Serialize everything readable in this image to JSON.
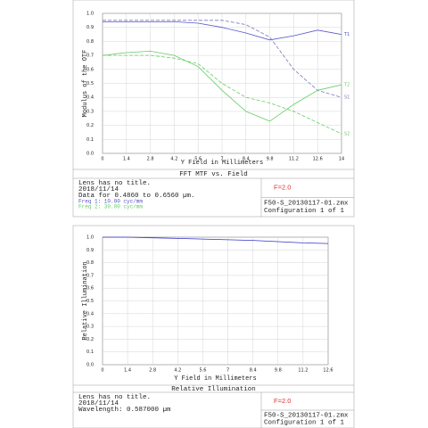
{
  "chart_data": [
    {
      "type": "line",
      "title": "FFT MTF vs. Field",
      "xlabel": "Y Field in Millimeters",
      "ylabel": "Modulus of the OTF",
      "x": [
        0,
        1.4,
        2.8,
        4.2,
        5.6,
        7,
        8.4,
        9.8,
        11.2,
        12.6,
        14
      ],
      "series": [
        {
          "name": "T1",
          "color": "#5555cc",
          "dash": false,
          "values": [
            0.94,
            0.94,
            0.94,
            0.94,
            0.93,
            0.9,
            0.86,
            0.81,
            0.84,
            0.88,
            0.85
          ]
        },
        {
          "name": "S1",
          "color": "#7777bb",
          "dash": true,
          "values": [
            0.95,
            0.95,
            0.95,
            0.95,
            0.95,
            0.95,
            0.92,
            0.83,
            0.6,
            0.45,
            0.4
          ]
        },
        {
          "name": "T2",
          "color": "#66cc66",
          "dash": false,
          "values": [
            0.7,
            0.72,
            0.73,
            0.7,
            0.62,
            0.45,
            0.3,
            0.23,
            0.35,
            0.45,
            0.49
          ]
        },
        {
          "name": "S2",
          "color": "#66cc66",
          "dash": true,
          "values": [
            0.7,
            0.7,
            0.7,
            0.68,
            0.64,
            0.5,
            0.4,
            0.36,
            0.3,
            0.22,
            0.14
          ]
        }
      ],
      "xlim": [
        0,
        14
      ],
      "xticks": [
        0,
        1.4,
        2.8,
        4.2,
        5.6,
        7,
        8.4,
        9.8,
        11.2,
        12.6,
        14
      ],
      "ylim": [
        0,
        1
      ],
      "yticks": [
        {
          "value": 0,
          "label": "0.0"
        },
        {
          "value": 0.1,
          "label": "0.1"
        },
        {
          "value": 0.2,
          "label": "0.2"
        },
        {
          "value": 0.3,
          "label": "0.3"
        },
        {
          "value": 0.4,
          "label": "0.4"
        },
        {
          "value": 0.5,
          "label": "0.5"
        },
        {
          "value": 0.6,
          "label": "0.6"
        },
        {
          "value": 0.7,
          "label": "0.7"
        },
        {
          "value": 0.8,
          "label": "0.8"
        },
        {
          "value": 0.9,
          "label": "0.9"
        },
        {
          "value": 1,
          "label": "1.0"
        }
      ],
      "info": [
        "Lens has no title.",
        "2018/11/14",
        "Data for 0.4860 to 0.6560 µm."
      ],
      "freq": [
        "Freq 1:   10.00 cyc/mm",
        "Freq 2:   30.00 cyc/mm"
      ],
      "fnumber": "F=2.0",
      "file": "F50-S_20130117-01.zmx",
      "configuration": "Configuration 1 of 1"
    },
    {
      "type": "line",
      "title": "Relative Illumination",
      "xlabel": "Y Field in Millimeters",
      "ylabel": "Relative Illumination",
      "x": [
        0,
        1.4,
        2.8,
        4.2,
        5.6,
        7,
        8.4,
        9.8,
        11.2,
        12.6
      ],
      "series": [
        {
          "name": null,
          "color": "#3333cc",
          "dash": false,
          "values": [
            1.0,
            1.0,
            0.995,
            0.99,
            0.985,
            0.98,
            0.975,
            0.965,
            0.955,
            0.95
          ]
        }
      ],
      "xlim": [
        0,
        12.6
      ],
      "xticks": [
        0,
        1.4,
        2.8,
        4.2,
        5.6,
        7,
        8.4,
        9.8,
        11.2,
        12.6
      ],
      "ylim": [
        0,
        1
      ],
      "yticks": [
        {
          "value": 0,
          "label": "0.0"
        },
        {
          "value": 0.1,
          "label": "0.1"
        },
        {
          "value": 0.2,
          "label": "0.2"
        },
        {
          "value": 0.3,
          "label": "0.3"
        },
        {
          "value": 0.4,
          "label": "0.4"
        },
        {
          "value": 0.5,
          "label": "0.5"
        },
        {
          "value": 0.6,
          "label": "0.6"
        },
        {
          "value": 0.7,
          "label": "0.7"
        },
        {
          "value": 0.8,
          "label": "0.8"
        },
        {
          "value": 0.9,
          "label": "0.9"
        },
        {
          "value": 1,
          "label": "1.0"
        }
      ],
      "info": [
        "Lens has no title.",
        "2018/11/14",
        "Wavelength: 0.587000 µm"
      ],
      "fnumber": "F=2.0",
      "file": "F50-S_20130117-01.zmx",
      "configuration": "Configuration 1 of 1"
    }
  ]
}
